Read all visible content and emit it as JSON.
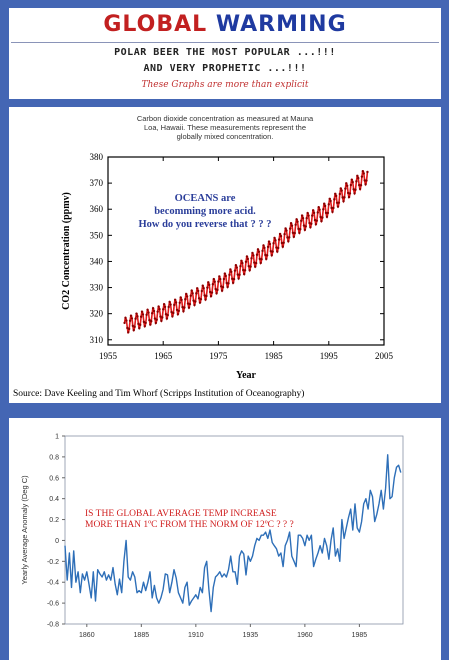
{
  "header": {
    "title_part1": "GLOBAL",
    "title_part2": "WARMING",
    "tagline1": "POLAR BEER THE MOST POPULAR ...!!!",
    "tagline2": "AND VERY PROPHETIC ...!!!",
    "subtagline": "These Graphs are more than explicit"
  },
  "chart_data": [
    {
      "type": "line",
      "caption": "Carbon dioxide concentration as measured at Mauna Loa, Hawaii. These measurements represent the globally mixed concentration.",
      "caption_lines": [
        "Carbon dioxide concentration as measured at Mauna",
        "Loa, Hawaii. These measurements represent the",
        "globally mixed concentration."
      ],
      "xlabel": "Year",
      "ylabel": "CO2 Concentration (ppmv)",
      "xlim": [
        1955,
        2005
      ],
      "ylim": [
        308,
        380
      ],
      "x_ticks": [
        1955,
        1965,
        1975,
        1985,
        1995,
        2005
      ],
      "y_ticks": [
        310,
        320,
        330,
        340,
        350,
        360,
        370,
        380
      ],
      "seasonal_amplitude": 3,
      "series": [
        {
          "x": [
            1958,
            1960,
            1962,
            1964,
            1966,
            1968,
            1970,
            1972,
            1974,
            1976,
            1978,
            1980,
            1982,
            1984,
            1986,
            1988,
            1990,
            1992,
            1994,
            1996,
            1998,
            2000,
            2002
          ],
          "values": [
            315.3,
            316.9,
            318.4,
            319.6,
            321.4,
            323.0,
            325.7,
            327.5,
            330.1,
            332.1,
            335.3,
            338.7,
            341.4,
            344.4,
            347.2,
            351.4,
            354.4,
            356.4,
            358.8,
            362.6,
            366.7,
            369.5,
            373.1
          ]
        }
      ],
      "color": "#dd1a1a",
      "annotation": [
        "OCEANS are",
        "becomming more acid.",
        "How do you reverse that ? ? ?"
      ],
      "source": "Source: Dave Keeling and Tim Whorf (Scripps Institution of Oceanography)"
    },
    {
      "type": "line",
      "ylabel": "Yearly Average Anomaly (Deg C)",
      "xlim": [
        1850,
        2005
      ],
      "ylim": [
        -0.8,
        1.0
      ],
      "x_ticks": [
        1860,
        1885,
        1910,
        1935,
        1960,
        1985
      ],
      "y_ticks": [
        -0.8,
        -0.6,
        -0.4,
        -0.2,
        0,
        0.2,
        0.4,
        0.6,
        0.8,
        1
      ],
      "y_tick_labels": [
        "-0.8",
        "-0.6",
        "-0.4",
        "-0.2",
        "0",
        "0.2",
        "0.4",
        "0.6",
        "0.8",
        "1"
      ],
      "color": "#2e6fb8",
      "annotation": [
        "IS THE GLOBAL AVERAGE TEMP INCREASE",
        "MORE  THAN 1ºC FROM  THE NORM OF 12ºC ? ? ?"
      ],
      "series": [
        {
          "x": [
            1850,
            1851,
            1852,
            1853,
            1854,
            1855,
            1856,
            1857,
            1858,
            1859,
            1860,
            1861,
            1862,
            1863,
            1864,
            1865,
            1866,
            1867,
            1868,
            1869,
            1870,
            1871,
            1872,
            1873,
            1874,
            1875,
            1876,
            1877,
            1878,
            1879,
            1880,
            1881,
            1882,
            1883,
            1884,
            1885,
            1886,
            1887,
            1888,
            1889,
            1890,
            1891,
            1892,
            1893,
            1894,
            1895,
            1896,
            1897,
            1898,
            1899,
            1900,
            1901,
            1902,
            1903,
            1904,
            1905,
            1906,
            1907,
            1908,
            1909,
            1910,
            1911,
            1912,
            1913,
            1914,
            1915,
            1916,
            1917,
            1918,
            1919,
            1920,
            1921,
            1922,
            1923,
            1924,
            1925,
            1926,
            1927,
            1928,
            1929,
            1930,
            1931,
            1932,
            1933,
            1934,
            1935,
            1936,
            1937,
            1938,
            1939,
            1940,
            1941,
            1942,
            1943,
            1944,
            1945,
            1946,
            1947,
            1948,
            1949,
            1950,
            1951,
            1952,
            1953,
            1954,
            1955,
            1956,
            1957,
            1958,
            1959,
            1960,
            1961,
            1962,
            1963,
            1964,
            1965,
            1966,
            1967,
            1968,
            1969,
            1970,
            1971,
            1972,
            1973,
            1974,
            1975,
            1976,
            1977,
            1978,
            1979,
            1980,
            1981,
            1982,
            1983,
            1984,
            1985,
            1986,
            1987,
            1988,
            1989,
            1990,
            1991,
            1992,
            1993,
            1994,
            1995,
            1996,
            1997,
            1998,
            1999,
            2000,
            2001,
            2002,
            2003,
            2004
          ],
          "values": [
            -0.05,
            -0.38,
            -0.12,
            -0.45,
            -0.1,
            -0.4,
            -0.3,
            -0.5,
            -0.32,
            -0.38,
            -0.3,
            -0.42,
            -0.55,
            -0.3,
            -0.58,
            -0.28,
            -0.32,
            -0.35,
            -0.3,
            -0.38,
            -0.33,
            -0.38,
            -0.26,
            -0.42,
            -0.52,
            -0.37,
            -0.5,
            -0.2,
            0.0,
            -0.35,
            -0.38,
            -0.3,
            -0.35,
            -0.5,
            -0.48,
            -0.5,
            -0.4,
            -0.48,
            -0.4,
            -0.3,
            -0.55,
            -0.43,
            -0.55,
            -0.6,
            -0.55,
            -0.47,
            -0.32,
            -0.33,
            -0.5,
            -0.4,
            -0.28,
            -0.36,
            -0.5,
            -0.55,
            -0.6,
            -0.45,
            -0.4,
            -0.62,
            -0.58,
            -0.55,
            -0.52,
            -0.56,
            -0.45,
            -0.5,
            -0.26,
            -0.2,
            -0.47,
            -0.68,
            -0.45,
            -0.35,
            -0.33,
            -0.3,
            -0.35,
            -0.32,
            -0.35,
            -0.28,
            -0.15,
            -0.3,
            -0.3,
            -0.42,
            -0.15,
            -0.1,
            -0.13,
            -0.33,
            -0.15,
            -0.2,
            -0.15,
            -0.05,
            0.02,
            0.0,
            0.05,
            0.05,
            0.08,
            0.02,
            0.1,
            -0.02,
            -0.05,
            -0.08,
            -0.15,
            -0.12,
            -0.25,
            -0.05,
            0.0,
            0.08,
            -0.15,
            -0.2,
            -0.25,
            0.05,
            0.05,
            0.02,
            -0.05,
            0.05,
            0.0,
            0.05,
            -0.25,
            -0.18,
            -0.12,
            -0.05,
            -0.12,
            0.02,
            -0.05,
            -0.18,
            0.0,
            0.12,
            -0.15,
            -0.08,
            -0.2,
            0.2,
            0.02,
            0.12,
            0.22,
            0.3,
            0.1,
            0.35,
            0.12,
            0.08,
            0.18,
            0.35,
            0.4,
            0.3,
            0.48,
            0.42,
            0.18,
            0.25,
            0.35,
            0.48,
            0.3,
            0.5,
            0.82,
            0.4,
            0.42,
            0.6,
            0.7,
            0.72,
            0.65
          ]
        }
      ]
    }
  ]
}
